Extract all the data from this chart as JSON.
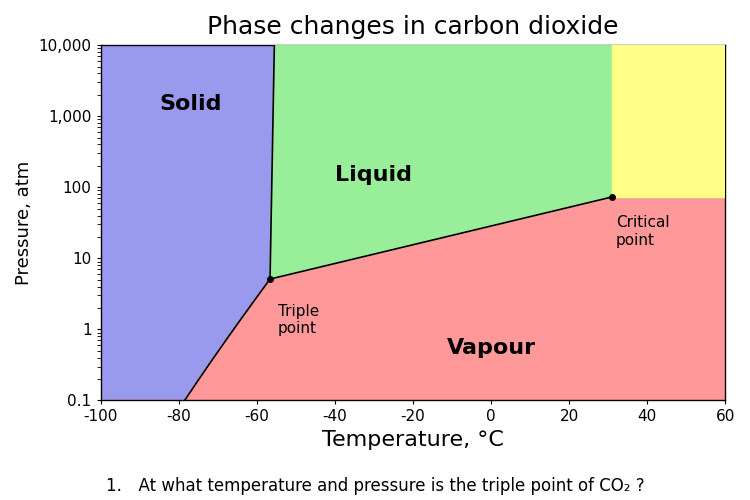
{
  "title": "Phase changes in carbon dioxide",
  "xlabel": "Temperature, °C",
  "ylabel": "Pressure, atm",
  "xlim": [
    -100,
    60
  ],
  "ylim_log": [
    0.1,
    10000
  ],
  "yticks": [
    0.1,
    1,
    10,
    100,
    1000,
    10000
  ],
  "ytick_labels": [
    "0.1",
    "1",
    "10",
    "100",
    "1,000",
    "10,000"
  ],
  "xticks": [
    -100,
    -80,
    -60,
    -40,
    -20,
    0,
    20,
    40,
    60
  ],
  "triple_point": [
    -56.6,
    5.1
  ],
  "critical_point": [
    31.0,
    73.0
  ],
  "solid_color": "#9999ee",
  "liquid_color": "#99ee99",
  "vapour_color": "#ff9999",
  "supercritical_color": "#ffff88",
  "label_solid": "Solid",
  "label_liquid": "Liquid",
  "label_vapour": "Vapour",
  "label_triple": "Triple\npoint",
  "label_critical": "Critical\npoint",
  "title_fontsize": 18,
  "label_fontsize": 13,
  "tick_fontsize": 11,
  "phase_label_fontsize": 16,
  "annotation_fontsize": 11,
  "question_text": "1. At what temperature and pressure is the triple point of CO₂ ?",
  "question_fontsize": 12,
  "background_color": "#ffffff"
}
